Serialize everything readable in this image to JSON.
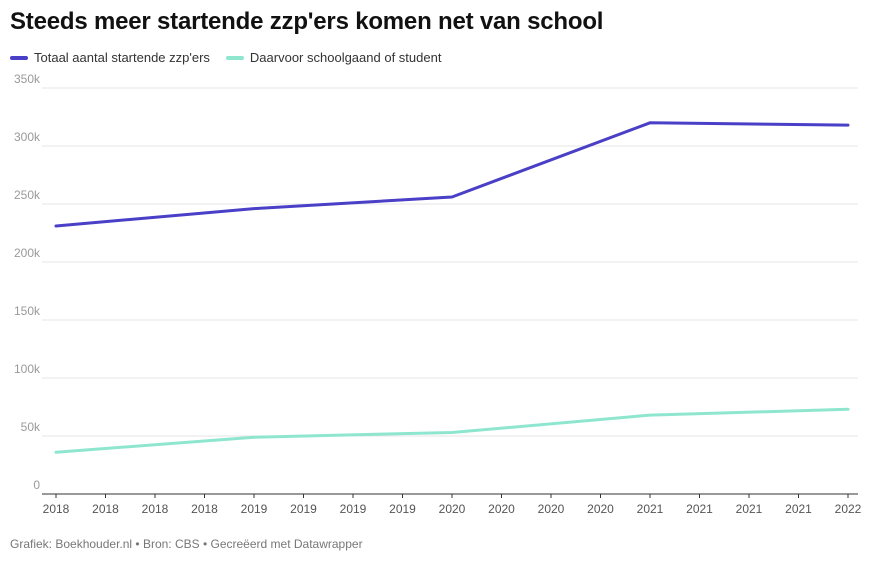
{
  "chart_data": {
    "type": "line",
    "title": "Steeds meer startende zzp'ers komen net van school",
    "x_tick_labels": [
      "2018",
      "2018",
      "2018",
      "2018",
      "2019",
      "2019",
      "2019",
      "2019",
      "2020",
      "2020",
      "2020",
      "2020",
      "2021",
      "2021",
      "2021",
      "2021",
      "2022"
    ],
    "x": [
      2018,
      2019,
      2020,
      2021,
      2022
    ],
    "y_ticks": [
      "0",
      "50k",
      "100k",
      "150k",
      "200k",
      "250k",
      "300k",
      "350k"
    ],
    "ylim": [
      0,
      350000
    ],
    "grid": true,
    "legend_position": "top-left",
    "series": [
      {
        "name": "Totaal aantal startende zzp'ers",
        "color": "#4a3fc7",
        "values": [
          231000,
          246000,
          256000,
          320000,
          318000
        ]
      },
      {
        "name": "Daarvoor schoolgaand of student",
        "color": "#8ee6cf",
        "values": [
          36000,
          49000,
          53000,
          68000,
          73000
        ]
      }
    ]
  },
  "footer": {
    "text": "Grafiek: Boekhouder.nl • Bron: CBS • Gecreëerd met Datawrapper"
  }
}
